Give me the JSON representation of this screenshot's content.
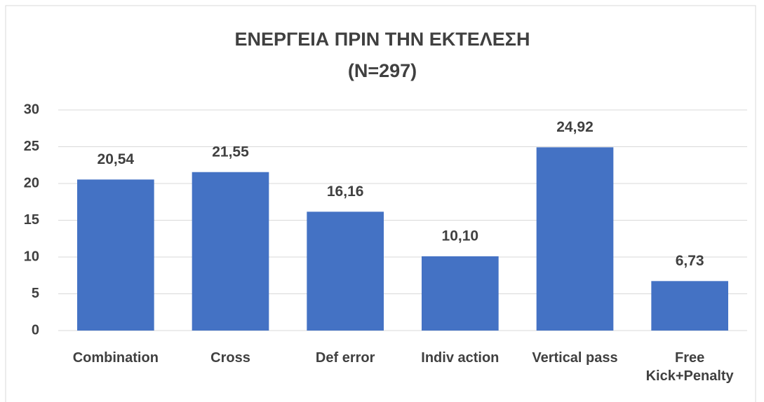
{
  "chart_data": {
    "type": "bar",
    "title": "ΕΝΕΡΓΕΙΑ ΠΡΙΝ ΤΗΝ ΕΚΤΕΛΕΣΗ",
    "subtitle": "(N=297)",
    "categories": [
      "Combination",
      "Cross",
      "Def error",
      "Indiv action",
      "Vertical pass",
      "Free Kick+Penalty"
    ],
    "values": [
      20.54,
      21.55,
      16.16,
      10.1,
      24.92,
      6.73
    ],
    "value_labels": [
      "20,54",
      "21,55",
      "16,16",
      "10,10",
      "24,92",
      "6,73"
    ],
    "color": "#4472c4",
    "ylim": [
      0,
      30
    ],
    "yticks": [
      0,
      5,
      10,
      15,
      20,
      25,
      30
    ],
    "grid": true
  }
}
